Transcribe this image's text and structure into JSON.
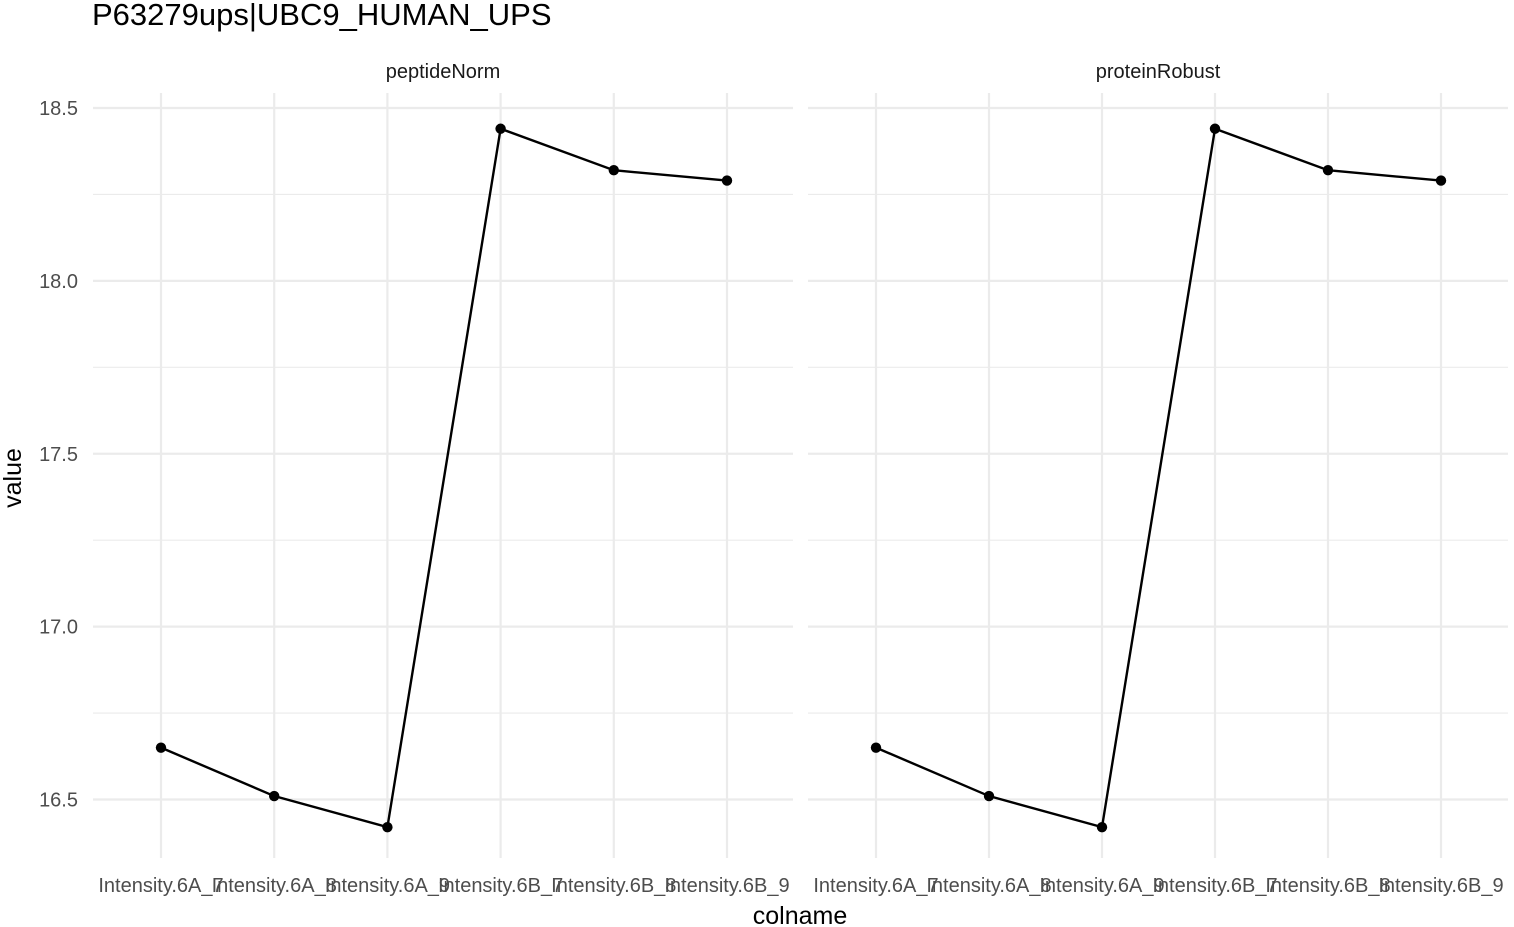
{
  "chart_data": {
    "type": "line",
    "title": "P63279ups|UBC9_HUMAN_UPS",
    "xlabel": "colname",
    "ylabel": "value",
    "ylim": [
      16.42,
      18.5
    ],
    "yticks": [
      16.5,
      17.0,
      17.5,
      18.0,
      18.5
    ],
    "ytick_labels": [
      "16.5",
      "17.0",
      "17.5",
      "18.0",
      "18.5"
    ],
    "categories": [
      "Intensity.6A_7",
      "Intensity.6A_8",
      "Intensity.6A_9",
      "Intensity.6B_7",
      "Intensity.6B_8",
      "Intensity.6B_9"
    ],
    "grid": true,
    "legend": "none",
    "panels": [
      {
        "name": "peptideNorm",
        "values": [
          16.65,
          16.51,
          16.42,
          18.44,
          18.32,
          18.29
        ]
      },
      {
        "name": "proteinRobust",
        "values": [
          16.65,
          16.51,
          16.42,
          18.44,
          18.32,
          18.29
        ]
      }
    ]
  }
}
